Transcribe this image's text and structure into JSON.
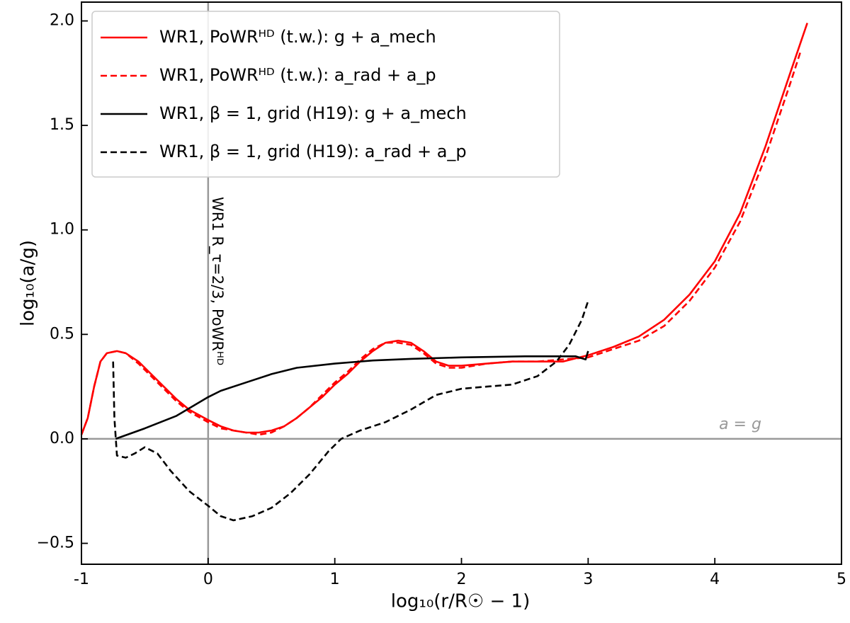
{
  "chart_data": {
    "type": "line",
    "xlabel": "log₁₀(r/R☉ − 1)",
    "ylabel": "log₁₀(a/g)",
    "xlim": [
      -1,
      5
    ],
    "ylim": [
      -0.6,
      2.09
    ],
    "xticks": [
      -1,
      0,
      1,
      2,
      3,
      4,
      5
    ],
    "yticks": [
      {
        "value": -0.5,
        "label": "−0.5"
      },
      {
        "value": 0,
        "label": "0.0"
      },
      0.5,
      {
        "value": 1,
        "label": "1.0"
      },
      1.5,
      {
        "value": 2,
        "label": "2.0"
      }
    ],
    "hlines": [
      0
    ],
    "vlines": [
      0
    ],
    "annotations": [
      "WR1 R_τ=2/3, PoWRᴴᴰ",
      "a = g"
    ],
    "legend": "upper left",
    "series": [
      {
        "name": "WR1, PoWRᴴᴰ (t.w.): g + a_mech",
        "color": "#ff0000",
        "linestyle": "solid",
        "x": [
          -1,
          -0.95,
          -0.9,
          -0.85,
          -0.8,
          -0.72,
          -0.65,
          -0.55,
          -0.45,
          -0.35,
          -0.25,
          -0.15,
          0,
          0.1,
          0.2,
          0.3,
          0.4,
          0.5,
          0.6,
          0.7,
          0.8,
          0.9,
          1.0,
          1.1,
          1.2,
          1.3,
          1.4,
          1.5,
          1.6,
          1.7,
          1.8,
          1.9,
          2.0,
          2.2,
          2.4,
          2.6,
          2.8,
          3.0,
          3.2,
          3.4,
          3.6,
          3.8,
          4.0,
          4.2,
          4.4,
          4.6,
          4.73
        ],
        "values": [
          0.02,
          0.1,
          0.25,
          0.37,
          0.41,
          0.42,
          0.41,
          0.37,
          0.31,
          0.25,
          0.19,
          0.14,
          0.09,
          0.06,
          0.04,
          0.03,
          0.03,
          0.04,
          0.06,
          0.1,
          0.15,
          0.2,
          0.26,
          0.31,
          0.37,
          0.42,
          0.46,
          0.47,
          0.46,
          0.42,
          0.37,
          0.35,
          0.35,
          0.36,
          0.37,
          0.37,
          0.37,
          0.4,
          0.44,
          0.49,
          0.57,
          0.69,
          0.85,
          1.08,
          1.4,
          1.76,
          1.99
        ]
      },
      {
        "name": "WR1, PoWRᴴᴰ (t.w.): a_rad + a_p",
        "color": "#ff0000",
        "linestyle": "dashed",
        "x": [
          -1,
          -0.95,
          -0.9,
          -0.85,
          -0.8,
          -0.72,
          -0.65,
          -0.55,
          -0.45,
          -0.35,
          -0.25,
          -0.15,
          0,
          0.1,
          0.2,
          0.3,
          0.4,
          0.5,
          0.6,
          0.7,
          0.8,
          0.9,
          1.0,
          1.1,
          1.2,
          1.3,
          1.4,
          1.5,
          1.6,
          1.7,
          1.8,
          1.9,
          2.0,
          2.2,
          2.4,
          2.6,
          2.8,
          3.0,
          3.2,
          3.4,
          3.6,
          3.8,
          4.0,
          4.2,
          4.4,
          4.6,
          4.68
        ],
        "values": [
          0.02,
          0.1,
          0.25,
          0.37,
          0.41,
          0.42,
          0.41,
          0.36,
          0.3,
          0.24,
          0.18,
          0.13,
          0.08,
          0.05,
          0.04,
          0.03,
          0.02,
          0.03,
          0.06,
          0.1,
          0.15,
          0.21,
          0.27,
          0.32,
          0.38,
          0.43,
          0.46,
          0.46,
          0.45,
          0.41,
          0.36,
          0.34,
          0.34,
          0.36,
          0.37,
          0.37,
          0.38,
          0.39,
          0.43,
          0.47,
          0.54,
          0.66,
          0.82,
          1.04,
          1.35,
          1.71,
          1.86
        ]
      },
      {
        "name": "WR1, β = 1, grid (H19): g + a_mech",
        "color": "#000000",
        "linestyle": "solid",
        "x": [
          -0.73,
          -0.5,
          -0.25,
          0,
          0.1,
          0.3,
          0.5,
          0.7,
          1.0,
          1.3,
          1.6,
          2.0,
          2.5,
          2.9,
          2.98,
          3.0
        ],
        "values": [
          0.0,
          0.05,
          0.11,
          0.2,
          0.23,
          0.27,
          0.31,
          0.34,
          0.36,
          0.375,
          0.383,
          0.39,
          0.395,
          0.395,
          0.38,
          0.42
        ]
      },
      {
        "name": "WR1, β = 1, grid (H19): a_rad + a_p",
        "color": "#000000",
        "linestyle": "dashed",
        "x": [
          -0.75,
          -0.74,
          -0.72,
          -0.65,
          -0.58,
          -0.5,
          -0.4,
          -0.3,
          -0.15,
          0,
          0.1,
          0.2,
          0.35,
          0.5,
          0.65,
          0.8,
          0.95,
          1.05,
          1.2,
          1.4,
          1.6,
          1.8,
          2.0,
          2.2,
          2.4,
          2.6,
          2.75,
          2.85,
          2.95,
          3.0
        ],
        "values": [
          0.37,
          0.1,
          -0.08,
          -0.09,
          -0.07,
          -0.04,
          -0.07,
          -0.15,
          -0.25,
          -0.32,
          -0.37,
          -0.39,
          -0.37,
          -0.33,
          -0.26,
          -0.17,
          -0.06,
          0.0,
          0.04,
          0.08,
          0.14,
          0.21,
          0.24,
          0.25,
          0.26,
          0.3,
          0.37,
          0.45,
          0.57,
          0.66
        ]
      }
    ]
  }
}
